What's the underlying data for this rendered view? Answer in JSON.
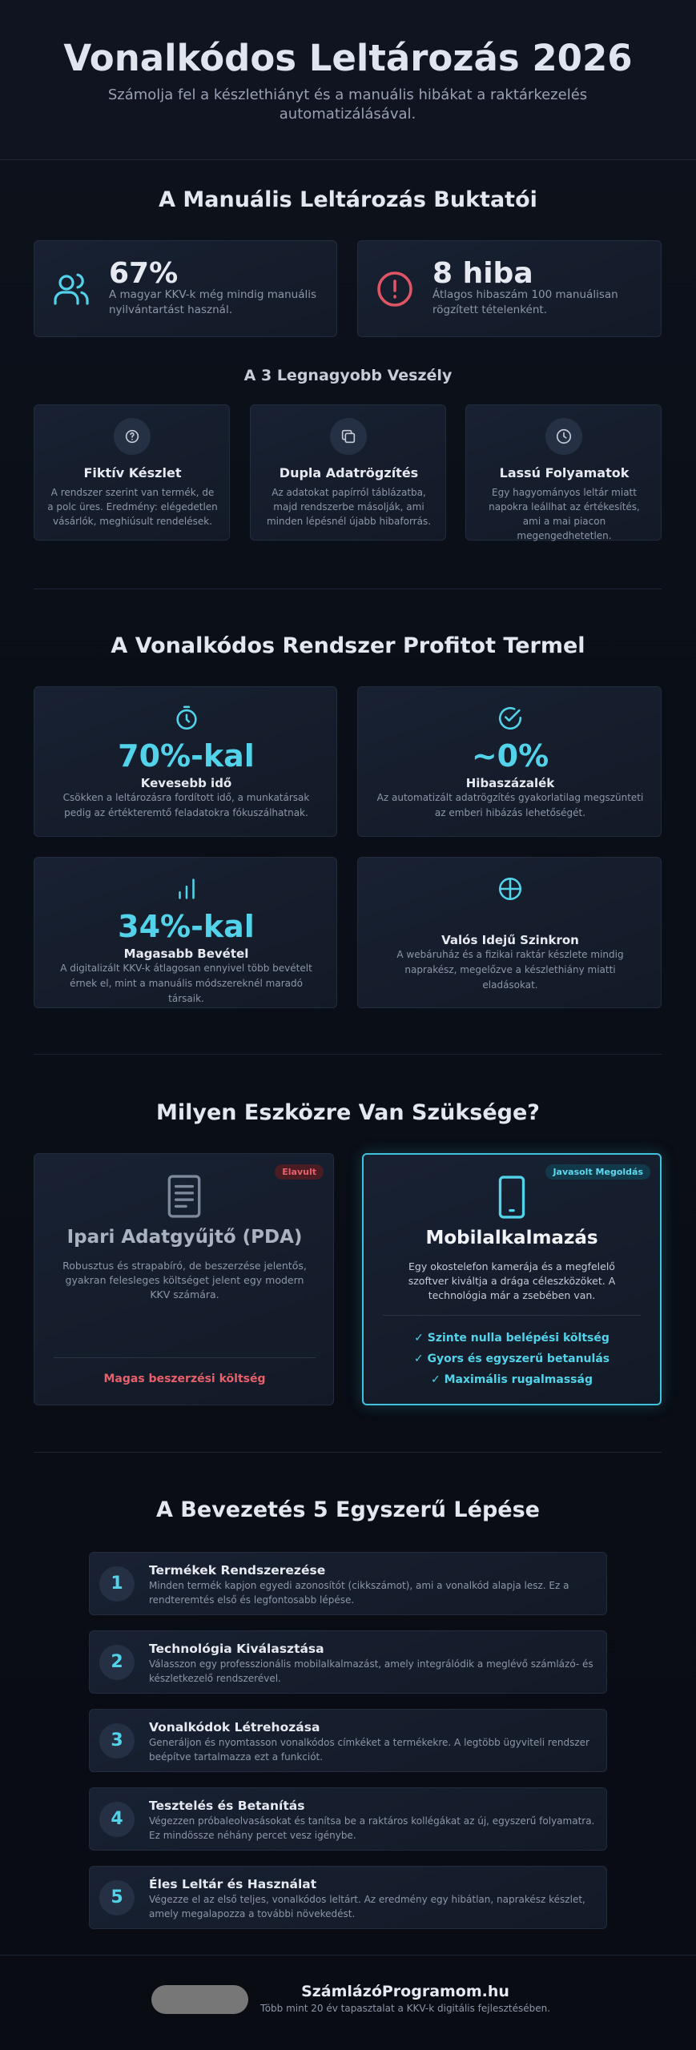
{
  "header": {
    "title": "Vonalkódos Leltározás 2026",
    "subtitle": "Számolja fel a készlethiányt és a manuális hibákat a raktárkezelés automatizálásával."
  },
  "pitfalls": {
    "heading": "A Manuális Leltározás Buktatói",
    "stats": [
      {
        "value": "67%",
        "text": "A magyar KKV-k még mindig manuális nyilvántartást használ."
      },
      {
        "value": "8 hiba",
        "text": "Átlagos hibaszám 100 manuálisan rögzített tételenként."
      }
    ],
    "subheading": "A 3 Legnagyobb Veszély",
    "dangers": [
      {
        "title": "Fiktív Készlet",
        "text": "A rendszer szerint van termék, de a polc üres. Eredmény: elégedetlen vásárlók, meghiúsult rendelések."
      },
      {
        "title": "Dupla Adatrögzítés",
        "text": "Az adatokat papírról táblázatba, majd rendszerbe másolják, ami minden lépésnél újabb hibaforrás."
      },
      {
        "title": "Lassú Folyamatok",
        "text": "Egy hagyományos leltár miatt napokra leállhat az értékesítés, ami a mai piacon megengedhetetlen."
      }
    ]
  },
  "benefits": {
    "heading": "A Vonalkódos Rendszer Profitot Termel",
    "items": [
      {
        "value": "70%-kal",
        "title": "Kevesebb idő",
        "text": "Csökken a leltározásra fordított idő, a munkatársak pedig az értékteremtő feladatokra fókuszálhatnak."
      },
      {
        "value": "~0%",
        "title": "Hibaszázalék",
        "text": "Az automatizált adatrögzítés gyakorlatilag megszünteti az emberi hibázás lehetőségét."
      },
      {
        "value": "34%-kal",
        "title": "Magasabb Bevétel",
        "text": "A digitalizált KKV-k átlagosan ennyivel több bevételt érnek el, mint a manuális módszereknél maradó társaik."
      },
      {
        "title": "Valós Idejű Szinkron",
        "text": "A webáruház és a fizikai raktár készlete mindig naprakész, megelőzve a készlethiány miatti eladásokat."
      }
    ]
  },
  "tools": {
    "heading": "Milyen Eszközre Van Szüksége?",
    "cards": [
      {
        "badge": "Elavult",
        "title": "Ipari Adatgyűjtő (PDA)",
        "text": "Robusztus és strapabíró, de beszerzése jelentős, gyakran felesleges költséget jelent egy modern KKV számára.",
        "footer": "Magas beszerzési költség"
      },
      {
        "badge": "Javasolt Megoldás",
        "title": "Mobilalkalmazás",
        "text": "Egy okostelefon kamerája és a megfelelő szoftver kiváltja a drága céleszközöket. A technológia már a zsebében van.",
        "features": [
          "✓ Szinte nulla belépési költség",
          "✓ Gyors és egyszerű betanulás",
          "✓ Maximális rugalmasság"
        ]
      }
    ]
  },
  "steps": {
    "heading": "A Bevezetés 5 Egyszerű Lépése",
    "items": [
      {
        "number": 1,
        "title": "Termékek Rendszerezése",
        "text": "Minden termék kapjon egyedi azonosítót (cikkszámot), ami a vonalkód alapja lesz. Ez a rendteremtés első és legfontosabb lépése."
      },
      {
        "number": 2,
        "title": "Technológia Kiválasztása",
        "text": "Válasszon egy professzionális mobilalkalmazást, amely integrálódik a meglévő számlázó- és készletkezelő rendszerével."
      },
      {
        "number": 3,
        "title": "Vonalkódok Létrehozása",
        "text": "Generáljon és nyomtasson vonalkódos címkéket a termékekre. A legtöbb ügyviteli rendszer beépítve tartalmazza ezt a funkciót."
      },
      {
        "number": 4,
        "title": "Tesztelés és Betanítás",
        "text": "Végezzen próbaleolvasásokat és tanítsa be a raktáros kollégákat az új, egyszerű folyamatra. Ez mindössze néhány percet vesz igénybe."
      },
      {
        "number": 5,
        "title": "Éles Leltár és Használat",
        "text": "Végezze el az első teljes, vonalkódos leltárt. Az eredmény egy hibátlan, naprakész készlet, amely megalapozza a további növekedést."
      }
    ]
  },
  "footer": {
    "brand": "SzámlázóProgramom.hu",
    "tagline": "Több mint 20 év tapasztalat a KKV-k digitális fejlesztésében."
  }
}
